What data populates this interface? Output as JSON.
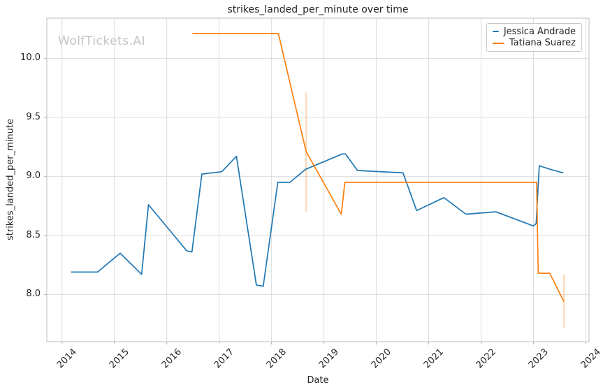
{
  "watermark": "WolfTickets.AI",
  "chart_data": {
    "type": "line",
    "title": "strikes_landed_per_minute over time",
    "xlabel": "Date",
    "ylabel": "strikes_landed_per_minute",
    "grid": true,
    "legend_position": "upper right",
    "x_range": [
      2013.71,
      2024.06
    ],
    "y_range": [
      7.6,
      10.34
    ],
    "x_ticks": [
      {
        "label": "2014",
        "value": 2014
      },
      {
        "label": "2015",
        "value": 2015
      },
      {
        "label": "2016",
        "value": 2016
      },
      {
        "label": "2017",
        "value": 2017
      },
      {
        "label": "2018",
        "value": 2018
      },
      {
        "label": "2019",
        "value": 2019
      },
      {
        "label": "2020",
        "value": 2020
      },
      {
        "label": "2021",
        "value": 2021
      },
      {
        "label": "2022",
        "value": 2022
      },
      {
        "label": "2023",
        "value": 2023
      },
      {
        "label": "2024",
        "value": 2024
      }
    ],
    "y_ticks": [
      {
        "label": "8.0",
        "value": 8.0
      },
      {
        "label": "8.5",
        "value": 8.5
      },
      {
        "label": "9.0",
        "value": 9.0
      },
      {
        "label": "9.5",
        "value": 9.5
      },
      {
        "label": "10.0",
        "value": 10.0
      }
    ],
    "series": [
      {
        "name": "Jessica Andrade",
        "color": "#1f77b4",
        "points": [
          [
            2014.17,
            8.19
          ],
          [
            2014.68,
            8.19
          ],
          [
            2015.11,
            8.35
          ],
          [
            2015.52,
            8.17
          ],
          [
            2015.65,
            8.76
          ],
          [
            2016.38,
            8.37
          ],
          [
            2016.48,
            8.36
          ],
          [
            2016.67,
            9.02
          ],
          [
            2017.05,
            9.04
          ],
          [
            2017.33,
            9.17
          ],
          [
            2017.71,
            8.08
          ],
          [
            2017.84,
            8.07
          ],
          [
            2018.12,
            8.95
          ],
          [
            2018.35,
            8.95
          ],
          [
            2018.65,
            9.06
          ],
          [
            2019.35,
            9.19
          ],
          [
            2019.41,
            9.19
          ],
          [
            2019.64,
            9.05
          ],
          [
            2020.51,
            9.03
          ],
          [
            2020.77,
            8.71
          ],
          [
            2021.29,
            8.82
          ],
          [
            2021.71,
            8.68
          ],
          [
            2022.28,
            8.7
          ],
          [
            2023.0,
            8.58
          ],
          [
            2023.05,
            8.6
          ],
          [
            2023.11,
            9.09
          ],
          [
            2023.32,
            9.06
          ],
          [
            2023.57,
            9.03
          ]
        ],
        "error_bars": []
      },
      {
        "name": "Tatiana Suarez",
        "color": "#ff7f0e",
        "points": [
          [
            2016.49,
            10.21
          ],
          [
            2018.13,
            10.21
          ],
          [
            2018.66,
            9.21
          ],
          [
            2019.33,
            8.68
          ],
          [
            2019.4,
            8.95
          ],
          [
            2023.06,
            8.95
          ],
          [
            2023.09,
            8.18
          ],
          [
            2023.31,
            8.18
          ],
          [
            2023.58,
            7.94
          ]
        ],
        "error_bars": [
          {
            "x": 2018.66,
            "y_low": 8.7,
            "y_high": 9.71
          },
          {
            "x": 2023.58,
            "y_low": 7.72,
            "y_high": 8.17
          }
        ]
      }
    ],
    "colors": {
      "grid": "#dcdcdc",
      "spine": "#c7c7c7",
      "tick_mark": "#b0b0b0",
      "text": "#262626",
      "watermark": "#c4c4c4"
    }
  }
}
